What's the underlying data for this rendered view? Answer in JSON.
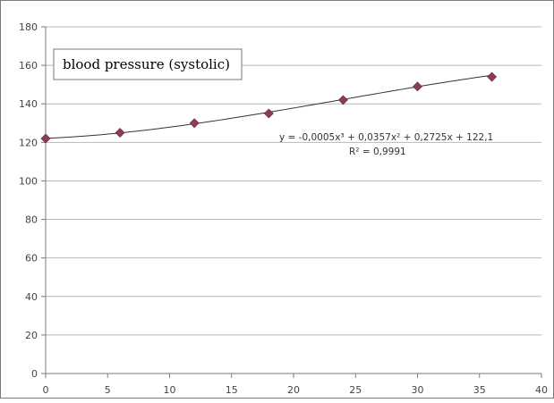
{
  "chart_data": {
    "type": "scatter",
    "title": "",
    "xlabel": "",
    "ylabel": "",
    "xlim": [
      0,
      40
    ],
    "ylim": [
      0,
      180
    ],
    "x_ticks": [
      0,
      5,
      10,
      15,
      20,
      25,
      30,
      35,
      40
    ],
    "y_ticks": [
      0,
      20,
      40,
      60,
      80,
      100,
      120,
      140,
      160,
      180
    ],
    "grid": "horizontal",
    "legend": {
      "entries": [
        "blood pressure (systolic)"
      ],
      "placement": "top-left"
    },
    "series": [
      {
        "name": "blood pressure (systolic)",
        "x": [
          0,
          6,
          12,
          18,
          24,
          30,
          36
        ],
        "y": [
          122,
          125,
          130,
          135,
          142,
          149,
          154
        ],
        "marker": "diamond",
        "color": "#8e3d4e"
      }
    ],
    "trendline": {
      "type": "polynomial",
      "coefficients": [
        -0.0005,
        0.0357,
        0.2725,
        122.1
      ],
      "x_range": [
        0,
        36
      ],
      "color": "#333333"
    },
    "annotations": {
      "equation": "y = -0,0005x³ + 0,0357x² + 0,2725x + 122,1",
      "r_squared": "R² = 0,9991"
    }
  }
}
